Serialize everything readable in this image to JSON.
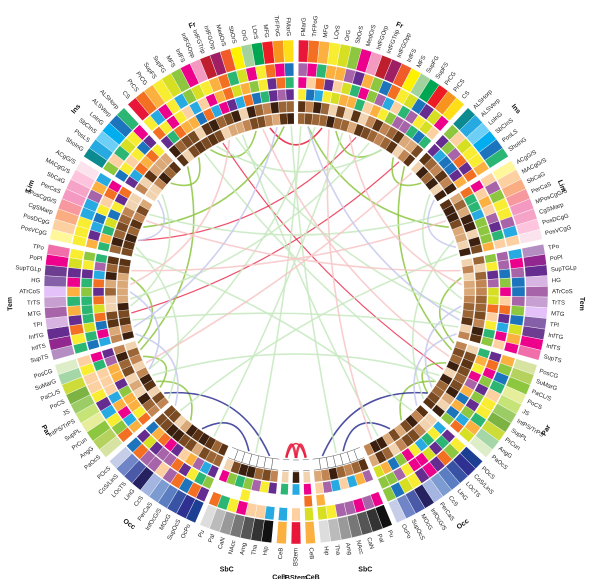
{
  "diagram": {
    "type": "connectogram"
  },
  "lobes": [
    {
      "id": "fr-r",
      "label": "Fr"
    },
    {
      "id": "ins-r",
      "label": "Ins"
    },
    {
      "id": "lim-r",
      "label": "Lim"
    },
    {
      "id": "tem-r",
      "label": "Tem"
    },
    {
      "id": "par-r",
      "label": "Par"
    },
    {
      "id": "occ-r",
      "label": "Occ"
    },
    {
      "id": "sbc-r",
      "label": "SbC"
    },
    {
      "id": "ceb-r",
      "label": "CeB"
    },
    {
      "id": "bstem",
      "label": "BStem"
    },
    {
      "id": "ceb-l",
      "label": "CeB"
    },
    {
      "id": "sbc-l",
      "label": "SbC"
    },
    {
      "id": "occ-l",
      "label": "Occ"
    },
    {
      "id": "par-l",
      "label": "Par"
    },
    {
      "id": "tem-l",
      "label": "Tem"
    },
    {
      "id": "lim-l",
      "label": "Lim"
    },
    {
      "id": "ins-l",
      "label": "Ins"
    },
    {
      "id": "fr-l",
      "label": "Fr"
    }
  ],
  "regions": {
    "fr-r": [
      "FMarG",
      "TrFPoG",
      "MFG",
      "LOrS",
      "OrG",
      "SbOrS",
      "MedOrS",
      "InfFGOrp",
      "InfFGTrip",
      "InfFGOpp",
      "InfFS",
      "MFS",
      "SupFG",
      "SupFS",
      "PrCG",
      "PrCS",
      "CS"
    ],
    "ins-r": [
      "ALSHorp",
      "ALSVerp",
      "LoInG",
      "SbCInS",
      "PosLS",
      "ShoInG"
    ],
    "lim-r": [
      "ACgG/S",
      "MACgG/S",
      "SbCaG",
      "PerCaS",
      "MPosCgG/S",
      "CgSMarp",
      "PosDCgG",
      "PosVCgG"
    ],
    "tem-r": [
      "TPo",
      "PoPl",
      "SupTGLp",
      "HG",
      "ATrCoS",
      "TrTS",
      "MTG",
      "TPl",
      "InfTG",
      "InfTS",
      "SupTS"
    ],
    "par-r": [
      "PosCG",
      "SuMarG",
      "PaCL/S",
      "PoCS",
      "JS",
      "IntPS/TrPS",
      "SupPL",
      "PrCun",
      "AngG",
      "PaOcS"
    ],
    "occ-r": [
      "POcS",
      "CoS/LinS",
      "LOcTS",
      "LinG",
      "CcS",
      "PerCaS",
      "InfOcG/S",
      "MOcG",
      "SupOcS",
      "OcPo"
    ],
    "sbc-r": [
      "Pu",
      "Pal",
      "CaN",
      "NAcc",
      "Amg",
      "Tha",
      "Hip"
    ],
    "ceb-r": [
      "CeB"
    ],
    "bstem": [
      "BStem"
    ],
    "ceb-l": [
      "CeB"
    ],
    "sbc-l": [
      "Hip",
      "Tha",
      "Amg",
      "NAcc",
      "CaN",
      "Pal",
      "Pu"
    ],
    "occ-l": [
      "OcPo",
      "SupOcS",
      "MOcG",
      "InfOcG/S",
      "PerCaS",
      "CcS",
      "LinG",
      "LOcTS",
      "CoS/LinS",
      "POcS"
    ],
    "par-l": [
      "PaOcS",
      "AngG",
      "PrCun",
      "SupPL",
      "IntPS/TrPS",
      "JS",
      "PoCS",
      "PaCL/S",
      "SuMarG",
      "PosCG"
    ],
    "tem-l": [
      "SupTS",
      "InfTS",
      "InfTG",
      "TPl",
      "MTG",
      "TrTS",
      "ATrCoS",
      "HG",
      "SupTGLp",
      "PoPl",
      "TPo"
    ],
    "lim-l": [
      "PosVCgG",
      "PosDCgG",
      "CgSMarp",
      "MPosCgG/S",
      "PerCaS",
      "SbCaG",
      "MACgG/S",
      "ACgG/S"
    ],
    "ins-l": [
      "ShoInG",
      "PosLS",
      "SbCInS",
      "LoInG",
      "ALSVerp",
      "ALSHorp"
    ],
    "fr-l": [
      "CS",
      "PrCS",
      "PrCG",
      "SupFS",
      "SupFG",
      "MFS",
      "InfFS",
      "InfFGOpp",
      "InfFGTrip",
      "InfFGOrp",
      "MedOrS",
      "SbOrS",
      "OrG",
      "LOrS",
      "MFG",
      "TrFPoG",
      "FMarG"
    ]
  },
  "colors": {
    "lobe_palette": {
      "fr": [
        "#e8173a",
        "#f36f21",
        "#fbb040",
        "#f9ed32",
        "#d7df23",
        "#8dc63f",
        "#ec008c",
        "#f49ac1",
        "#be1e2d",
        "#9e1f63",
        "#f15a29",
        "#fff200",
        "#a3d39c",
        "#00a651",
        "#ed1c24",
        "#f7941d",
        "#ffde17"
      ],
      "ins": [
        "#0b8a8f",
        "#27aae1",
        "#6dcff6",
        "#00aeef",
        "#1c75bc",
        "#2bb673"
      ],
      "lim": [
        "#fff799",
        "#fdd0a2",
        "#f9ad81",
        "#f6989d",
        "#f49ac2",
        "#f5a3c7",
        "#ffc4dd",
        "#fbe3ee"
      ],
      "tem": [
        "#b48ec2",
        "#92278f",
        "#662d91",
        "#d7b4e2",
        "#a864a8",
        "#c79fd0",
        "#e4c1f9",
        "#8560a8",
        "#6c3d91",
        "#ec008c",
        "#f06eaa"
      ],
      "par": [
        "#d7e4a1",
        "#b5d25f",
        "#8dc63f",
        "#e6ee9c",
        "#c6e377",
        "#9ccc65",
        "#7cb342",
        "#cddc39",
        "#a5d6a7",
        "#dcedc8"
      ],
      "occ": [
        "#1c3f94",
        "#2e3192",
        "#3953a4",
        "#5b7ec2",
        "#7b9bd1",
        "#a3b5e0",
        "#262262",
        "#4a5aa8",
        "#6f85c7",
        "#c5cde8"
      ],
      "sbc": [
        "#111111",
        "#333333",
        "#555555",
        "#777777",
        "#999999",
        "#bbbbbb",
        "#dddddd"
      ],
      "ceb": [
        "#fbb040"
      ],
      "bstem": [
        "#e8173a"
      ]
    },
    "ring_palette": [
      "#fdd0a2",
      "#f9ed32",
      "#fbb040",
      "#2bb673",
      "#8dc63f",
      "#a864a8",
      "#ec008c",
      "#27aae1",
      "#662d91",
      "#f36f21",
      "#1c75bc",
      "#d7df23"
    ],
    "brown_palette": [
      "#3b1f0f",
      "#5a3214",
      "#7a4a22",
      "#9c6535",
      "#c08553",
      "#dba877",
      "#f2d3b0",
      "#ffffff"
    ],
    "edge_colors": [
      "#e8173a",
      "#8dc63f",
      "#2e3192",
      "#c7e9c0",
      "#f7c6c7",
      "#c6c9ec"
    ]
  },
  "edges": [
    {
      "from": [
        "fr-r",
        3
      ],
      "to": [
        "fr-l",
        13
      ],
      "color": "#e8173a",
      "weight": 2
    },
    {
      "from": [
        "fr-r",
        8
      ],
      "to": [
        "lim-l",
        2
      ],
      "color": "#e8173a",
      "weight": 1
    },
    {
      "from": [
        "fr-l",
        6
      ],
      "to": [
        "par-r",
        4
      ],
      "color": "#e8173a",
      "weight": 1
    },
    {
      "from": [
        "tem-l",
        3
      ],
      "to": [
        "fr-r",
        15
      ],
      "color": "#e8173a",
      "weight": 1
    },
    {
      "from": [
        "bstem",
        0
      ],
      "to": [
        "ceb-l",
        0
      ],
      "color": "#e8173a",
      "weight": 3
    },
    {
      "from": [
        "ceb-r",
        0
      ],
      "to": [
        "bstem",
        0
      ],
      "color": "#e8173a",
      "weight": 3
    },
    {
      "from": [
        "ceb-r",
        0
      ],
      "to": [
        "ceb-l",
        0
      ],
      "color": "#e8173a",
      "weight": 2
    },
    {
      "from": [
        "fr-r",
        5
      ],
      "to": [
        "fr-r",
        12
      ],
      "color": "#8dc63f",
      "weight": 2
    },
    {
      "from": [
        "fr-l",
        4
      ],
      "to": [
        "fr-l",
        11
      ],
      "color": "#8dc63f",
      "weight": 2
    },
    {
      "from": [
        "ins-r",
        2
      ],
      "to": [
        "fr-r",
        14
      ],
      "color": "#8dc63f",
      "weight": 2
    },
    {
      "from": [
        "ins-l",
        3
      ],
      "to": [
        "fr-l",
        2
      ],
      "color": "#8dc63f",
      "weight": 2
    },
    {
      "from": [
        "lim-r",
        3
      ],
      "to": [
        "fr-r",
        1
      ],
      "color": "#8dc63f",
      "weight": 2
    },
    {
      "from": [
        "lim-l",
        4
      ],
      "to": [
        "fr-l",
        15
      ],
      "color": "#8dc63f",
      "weight": 2
    },
    {
      "from": [
        "par-r",
        3
      ],
      "to": [
        "par-r",
        8
      ],
      "color": "#8dc63f",
      "weight": 2
    },
    {
      "from": [
        "par-l",
        2
      ],
      "to": [
        "par-l",
        7
      ],
      "color": "#8dc63f",
      "weight": 2
    },
    {
      "from": [
        "par-r",
        6
      ],
      "to": [
        "occ-r",
        3
      ],
      "color": "#8dc63f",
      "weight": 2
    },
    {
      "from": [
        "par-l",
        3
      ],
      "to": [
        "occ-l",
        6
      ],
      "color": "#8dc63f",
      "weight": 2
    },
    {
      "from": [
        "tem-r",
        2
      ],
      "to": [
        "par-r",
        0
      ],
      "color": "#8dc63f",
      "weight": 2
    },
    {
      "from": [
        "tem-l",
        8
      ],
      "to": [
        "par-l",
        9
      ],
      "color": "#8dc63f",
      "weight": 2
    },
    {
      "from": [
        "fr-r",
        16
      ],
      "to": [
        "par-r",
        1
      ],
      "color": "#8dc63f",
      "weight": 2
    },
    {
      "from": [
        "fr-l",
        0
      ],
      "to": [
        "par-l",
        8
      ],
      "color": "#8dc63f",
      "weight": 2
    },
    {
      "from": [
        "occ-r",
        5
      ],
      "to": [
        "sbc-r",
        2
      ],
      "color": "#2e3192",
      "weight": 2
    },
    {
      "from": [
        "occ-l",
        4
      ],
      "to": [
        "sbc-l",
        4
      ],
      "color": "#2e3192",
      "weight": 2
    },
    {
      "from": [
        "par-r",
        8
      ],
      "to": [
        "sbc-r",
        5
      ],
      "color": "#2e3192",
      "weight": 2
    },
    {
      "from": [
        "par-l",
        1
      ],
      "to": [
        "sbc-l",
        1
      ],
      "color": "#2e3192",
      "weight": 2
    },
    {
      "from": [
        "fr-r",
        2
      ],
      "to": [
        "par-l",
        5
      ],
      "color": "#c7e9c0",
      "weight": 2
    },
    {
      "from": [
        "fr-l",
        3
      ],
      "to": [
        "par-r",
        6
      ],
      "color": "#c7e9c0",
      "weight": 2
    },
    {
      "from": [
        "fr-r",
        10
      ],
      "to": [
        "tem-l",
        5
      ],
      "color": "#c7e9c0",
      "weight": 2
    },
    {
      "from": [
        "fr-l",
        8
      ],
      "to": [
        "tem-r",
        7
      ],
      "color": "#c7e9c0",
      "weight": 2
    },
    {
      "from": [
        "lim-r",
        1
      ],
      "to": [
        "lim-l",
        6
      ],
      "color": "#c7e9c0",
      "weight": 2
    },
    {
      "from": [
        "lim-r",
        5
      ],
      "to": [
        "par-r",
        9
      ],
      "color": "#c7e9c0",
      "weight": 2
    },
    {
      "from": [
        "lim-l",
        1
      ],
      "to": [
        "par-l",
        0
      ],
      "color": "#c7e9c0",
      "weight": 2
    },
    {
      "from": [
        "ins-r",
        4
      ],
      "to": [
        "tem-r",
        5
      ],
      "color": "#c7e9c0",
      "weight": 2
    },
    {
      "from": [
        "ins-l",
        1
      ],
      "to": [
        "tem-l",
        4
      ],
      "color": "#c7e9c0",
      "weight": 2
    },
    {
      "from": [
        "fr-r",
        6
      ],
      "to": [
        "occ-l",
        2
      ],
      "color": "#c7e9c0",
      "weight": 2
    },
    {
      "from": [
        "fr-l",
        9
      ],
      "to": [
        "occ-r",
        7
      ],
      "color": "#c7e9c0",
      "weight": 2
    },
    {
      "from": [
        "tem-r",
        9
      ],
      "to": [
        "tem-l",
        2
      ],
      "color": "#c7e9c0",
      "weight": 2
    },
    {
      "from": [
        "par-r",
        5
      ],
      "to": [
        "par-l",
        4
      ],
      "color": "#c7e9c0",
      "weight": 2
    },
    {
      "from": [
        "fr-r",
        12
      ],
      "to": [
        "fr-l",
        5
      ],
      "color": "#c7e9c0",
      "weight": 2
    },
    {
      "from": [
        "fr-r",
        0
      ],
      "to": [
        "sbc-l",
        3
      ],
      "color": "#c7e9c0",
      "weight": 2
    },
    {
      "from": [
        "fr-l",
        16
      ],
      "to": [
        "sbc-r",
        3
      ],
      "color": "#c7e9c0",
      "weight": 2
    },
    {
      "from": [
        "lim-r",
        7
      ],
      "to": [
        "occ-l",
        8
      ],
      "color": "#c7e9c0",
      "weight": 2
    },
    {
      "from": [
        "lim-l",
        0
      ],
      "to": [
        "occ-r",
        1
      ],
      "color": "#c7e9c0",
      "weight": 2
    },
    {
      "from": [
        "fr-r",
        7
      ],
      "to": [
        "tem-r",
        3
      ],
      "color": "#f7c6c7",
      "weight": 2
    },
    {
      "from": [
        "fr-l",
        7
      ],
      "to": [
        "tem-l",
        7
      ],
      "color": "#f7c6c7",
      "weight": 2
    },
    {
      "from": [
        "par-r",
        2
      ],
      "to": [
        "fr-l",
        12
      ],
      "color": "#f7c6c7",
      "weight": 2
    },
    {
      "from": [
        "ins-r",
        0
      ],
      "to": [
        "par-l",
        6
      ],
      "color": "#f7c6c7",
      "weight": 2
    },
    {
      "from": [
        "lim-r",
        2
      ],
      "to": [
        "tem-l",
        9
      ],
      "color": "#f7c6c7",
      "weight": 2
    },
    {
      "from": [
        "occ-r",
        8
      ],
      "to": [
        "fr-r",
        4
      ],
      "color": "#f7c6c7",
      "weight": 2
    },
    {
      "from": [
        "tem-r",
        1
      ],
      "to": [
        "lim-l",
        5
      ],
      "color": "#f7c6c7",
      "weight": 2
    },
    {
      "from": [
        "fr-r",
        1
      ],
      "to": [
        "tem-r",
        8
      ],
      "color": "#c6c9ec",
      "weight": 2
    },
    {
      "from": [
        "fr-l",
        14
      ],
      "to": [
        "tem-l",
        1
      ],
      "color": "#c6c9ec",
      "weight": 2
    },
    {
      "from": [
        "tem-r",
        6
      ],
      "to": [
        "par-r",
        7
      ],
      "color": "#c6c9ec",
      "weight": 2
    },
    {
      "from": [
        "tem-l",
        6
      ],
      "to": [
        "par-l",
        5
      ],
      "color": "#c6c9ec",
      "weight": 2
    },
    {
      "from": [
        "occ-r",
        0
      ],
      "to": [
        "tem-r",
        10
      ],
      "color": "#c6c9ec",
      "weight": 2
    },
    {
      "from": [
        "occ-l",
        9
      ],
      "to": [
        "tem-l",
        0
      ],
      "color": "#c6c9ec",
      "weight": 2
    },
    {
      "from": [
        "ins-r",
        5
      ],
      "to": [
        "lim-r",
        6
      ],
      "color": "#c6c9ec",
      "weight": 2
    },
    {
      "from": [
        "ins-l",
        0
      ],
      "to": [
        "lim-l",
        2
      ],
      "color": "#c6c9ec",
      "weight": 2
    }
  ]
}
